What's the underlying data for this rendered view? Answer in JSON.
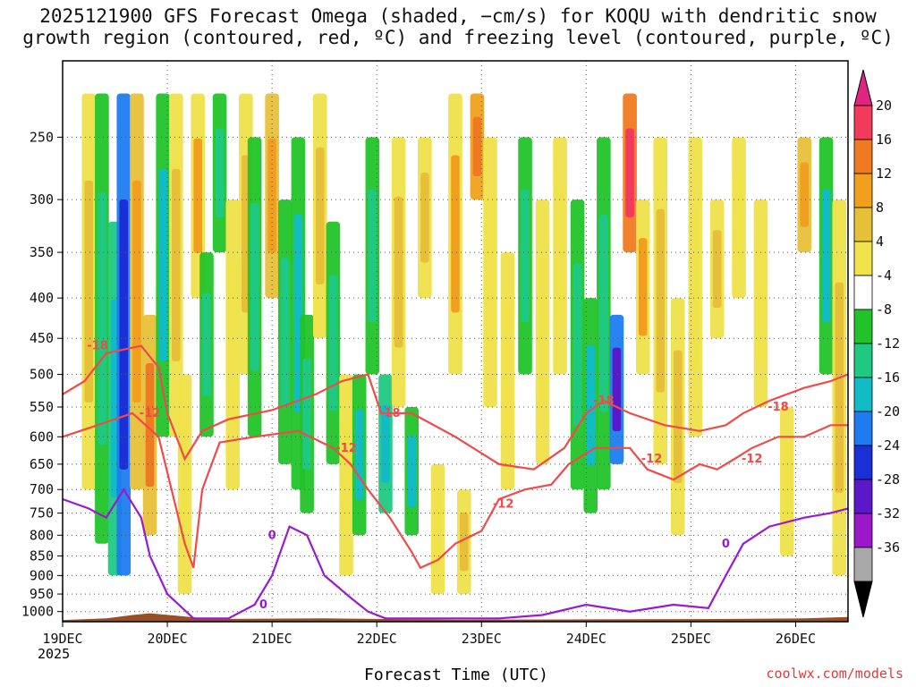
{
  "title": {
    "line1": "2025121900 GFS Forecast Omega (shaded, −cm/s) for KOQU with dendritic snow",
    "line2": "growth region (contoured, red, ºC) and freezing level (contoured, purple, ºC)"
  },
  "xlabel": "Forecast Time (UTC)",
  "year": "2025",
  "credit": "coolwx.com/models",
  "chart_data": {
    "type": "heatmap",
    "title": "2025121900 GFS Forecast Omega (shaded, −cm/s) for KOQU with dendritic snow growth region (contoured, red, ºC) and freezing level (contoured, purple, ºC)",
    "xlabel": "Forecast Time (UTC)",
    "ylabel": "",
    "x_ticks": [
      "19DEC",
      "20DEC",
      "21DEC",
      "22DEC",
      "23DEC",
      "24DEC",
      "25DEC",
      "26DEC"
    ],
    "x_range_hours": [
      0,
      180
    ],
    "y_ticks": [
      250,
      300,
      350,
      400,
      450,
      500,
      550,
      600,
      650,
      700,
      750,
      800,
      850,
      900,
      950,
      1000
    ],
    "y_range": [
      200,
      1030
    ],
    "y_scale": "log-pressure (inverted)",
    "grid": true,
    "colorbar": {
      "labels": [
        "20",
        "16",
        "12",
        "8",
        "4",
        "-4",
        "-8",
        "-12",
        "-16",
        "-20",
        "-24",
        "-28",
        "-32",
        "-36"
      ],
      "colors": [
        "#f23a5a",
        "#f07a22",
        "#f0a01e",
        "#e7c03a",
        "#efe24a",
        "#ffffff",
        "#22c32a",
        "#1fc982",
        "#12bcc4",
        "#1e7cf0",
        "#1a2fd6",
        "#5a18c8",
        "#9a18c8",
        "#a8a8a8"
      ]
    },
    "omega_cells": [
      {
        "t": 6,
        "p0": 220,
        "p1": 700,
        "v": 10
      },
      {
        "t": 9,
        "p0": 220,
        "p1": 820,
        "v": -10
      },
      {
        "t": 12,
        "p0": 320,
        "p1": 900,
        "v": -14
      },
      {
        "t": 14,
        "p0": 220,
        "p1": 900,
        "v": -22
      },
      {
        "t": 17,
        "p0": 220,
        "p1": 700,
        "v": 14
      },
      {
        "t": 20,
        "p0": 420,
        "p1": 800,
        "v": 16
      },
      {
        "t": 23,
        "p0": 220,
        "p1": 600,
        "v": -12
      },
      {
        "t": 26,
        "p0": 220,
        "p1": 600,
        "v": 10
      },
      {
        "t": 28,
        "p0": 500,
        "p1": 950,
        "v": 6
      },
      {
        "t": 31,
        "p0": 220,
        "p1": 400,
        "v": 12
      },
      {
        "t": 33,
        "p0": 350,
        "p1": 600,
        "v": -10
      },
      {
        "t": 36,
        "p0": 220,
        "p1": 350,
        "v": -8
      },
      {
        "t": 39,
        "p0": 300,
        "p1": 700,
        "v": 6
      },
      {
        "t": 42,
        "p0": 220,
        "p1": 500,
        "v": 10
      },
      {
        "t": 44,
        "p0": 250,
        "p1": 600,
        "v": -9
      },
      {
        "t": 48,
        "p0": 220,
        "p1": 400,
        "v": 14
      },
      {
        "t": 51,
        "p0": 300,
        "p1": 650,
        "v": -10
      },
      {
        "t": 54,
        "p0": 250,
        "p1": 700,
        "v": -13
      },
      {
        "t": 56,
        "p0": 420,
        "p1": 750,
        "v": -8
      },
      {
        "t": 59,
        "p0": 220,
        "p1": 450,
        "v": 10
      },
      {
        "t": 62,
        "p0": 320,
        "p1": 650,
        "v": -9
      },
      {
        "t": 65,
        "p0": 500,
        "p1": 900,
        "v": 6
      },
      {
        "t": 68,
        "p0": 500,
        "p1": 800,
        "v": -12
      },
      {
        "t": 71,
        "p0": 250,
        "p1": 500,
        "v": -10
      },
      {
        "t": 74,
        "p0": 500,
        "p1": 750,
        "v": -14
      },
      {
        "t": 77,
        "p0": 250,
        "p1": 550,
        "v": 8
      },
      {
        "t": 80,
        "p0": 550,
        "p1": 800,
        "v": -12
      },
      {
        "t": 83,
        "p0": 250,
        "p1": 400,
        "v": 10
      },
      {
        "t": 86,
        "p0": 650,
        "p1": 950,
        "v": 6
      },
      {
        "t": 90,
        "p0": 220,
        "p1": 500,
        "v": 12
      },
      {
        "t": 92,
        "p0": 700,
        "p1": 950,
        "v": 8
      },
      {
        "t": 95,
        "p0": 220,
        "p1": 300,
        "v": 18
      },
      {
        "t": 98,
        "p0": 250,
        "p1": 550,
        "v": 6
      },
      {
        "t": 102,
        "p0": 350,
        "p1": 700,
        "v": 6
      },
      {
        "t": 106,
        "p0": 250,
        "p1": 500,
        "v": -8
      },
      {
        "t": 110,
        "p0": 300,
        "p1": 650,
        "v": 6
      },
      {
        "t": 114,
        "p0": 250,
        "p1": 500,
        "v": 6
      },
      {
        "t": 118,
        "p0": 300,
        "p1": 700,
        "v": -10
      },
      {
        "t": 121,
        "p0": 400,
        "p1": 750,
        "v": -12
      },
      {
        "t": 124,
        "p0": 250,
        "p1": 700,
        "v": -8
      },
      {
        "t": 127,
        "p0": 420,
        "p1": 650,
        "v": -24
      },
      {
        "t": 130,
        "p0": 220,
        "p1": 350,
        "v": 22
      },
      {
        "t": 133,
        "p0": 300,
        "p1": 500,
        "v": 12
      },
      {
        "t": 137,
        "p0": 250,
        "p1": 650,
        "v": 10
      },
      {
        "t": 141,
        "p0": 400,
        "p1": 800,
        "v": 8
      },
      {
        "t": 145,
        "p0": 250,
        "p1": 600,
        "v": 6
      },
      {
        "t": 150,
        "p0": 300,
        "p1": 450,
        "v": 10
      },
      {
        "t": 155,
        "p0": 250,
        "p1": 400,
        "v": 6
      },
      {
        "t": 160,
        "p0": 300,
        "p1": 550,
        "v": 6
      },
      {
        "t": 166,
        "p0": 550,
        "p1": 850,
        "v": 6
      },
      {
        "t": 170,
        "p0": 250,
        "p1": 350,
        "v": 14
      },
      {
        "t": 175,
        "p0": 250,
        "p1": 500,
        "v": -12
      },
      {
        "t": 178,
        "p0": 300,
        "p1": 900,
        "v": 10
      }
    ],
    "contours": [
      {
        "name": "-18",
        "color": "#f04a4a",
        "labels": [
          {
            "t": 8,
            "p": 460,
            "text": "-18"
          },
          {
            "t": 75,
            "p": 560,
            "text": "-18"
          },
          {
            "t": 124,
            "p": 540,
            "text": "-18"
          },
          {
            "t": 164,
            "p": 550,
            "text": "-18"
          }
        ],
        "points": [
          [
            0,
            530
          ],
          [
            5,
            510
          ],
          [
            10,
            470
          ],
          [
            18,
            460
          ],
          [
            22,
            490
          ],
          [
            24,
            560
          ],
          [
            28,
            640
          ],
          [
            32,
            590
          ],
          [
            38,
            570
          ],
          [
            48,
            555
          ],
          [
            58,
            530
          ],
          [
            64,
            510
          ],
          [
            70,
            500
          ],
          [
            73,
            560
          ],
          [
            80,
            560
          ],
          [
            90,
            600
          ],
          [
            100,
            650
          ],
          [
            108,
            660
          ],
          [
            115,
            620
          ],
          [
            120,
            560
          ],
          [
            124,
            540
          ],
          [
            130,
            560
          ],
          [
            138,
            580
          ],
          [
            146,
            590
          ],
          [
            152,
            580
          ],
          [
            156,
            560
          ],
          [
            162,
            540
          ],
          [
            170,
            520
          ],
          [
            176,
            510
          ],
          [
            180,
            500
          ]
        ]
      },
      {
        "name": "-12",
        "color": "#f04a4a",
        "labels": [
          {
            "t": 20,
            "p": 560,
            "text": "-12"
          },
          {
            "t": 65,
            "p": 620,
            "text": "-12"
          },
          {
            "t": 101,
            "p": 730,
            "text": "-12"
          },
          {
            "t": 135,
            "p": 640,
            "text": "-12"
          },
          {
            "t": 158,
            "p": 640,
            "text": "-12"
          }
        ],
        "points": [
          [
            0,
            600
          ],
          [
            8,
            580
          ],
          [
            16,
            560
          ],
          [
            22,
            600
          ],
          [
            28,
            820
          ],
          [
            30,
            880
          ],
          [
            32,
            700
          ],
          [
            36,
            610
          ],
          [
            44,
            600
          ],
          [
            54,
            590
          ],
          [
            62,
            620
          ],
          [
            66,
            650
          ],
          [
            70,
            700
          ],
          [
            75,
            760
          ],
          [
            80,
            840
          ],
          [
            82,
            880
          ],
          [
            86,
            860
          ],
          [
            90,
            820
          ],
          [
            96,
            790
          ],
          [
            100,
            720
          ],
          [
            106,
            700
          ],
          [
            112,
            690
          ],
          [
            116,
            650
          ],
          [
            122,
            620
          ],
          [
            130,
            620
          ],
          [
            134,
            660
          ],
          [
            140,
            680
          ],
          [
            146,
            650
          ],
          [
            150,
            660
          ],
          [
            154,
            640
          ],
          [
            158,
            620
          ],
          [
            164,
            600
          ],
          [
            170,
            600
          ],
          [
            176,
            580
          ],
          [
            180,
            580
          ]
        ]
      },
      {
        "name": "0",
        "color": "#9a1ad0",
        "labels": [
          {
            "t": 48,
            "p": 800,
            "text": "0"
          },
          {
            "t": 46,
            "p": 980,
            "text": "0"
          },
          {
            "t": 152,
            "p": 820,
            "text": "0"
          }
        ],
        "points": [
          [
            0,
            720
          ],
          [
            6,
            740
          ],
          [
            10,
            760
          ],
          [
            14,
            700
          ],
          [
            18,
            760
          ],
          [
            20,
            850
          ],
          [
            24,
            950
          ],
          [
            30,
            1020
          ],
          [
            38,
            1020
          ],
          [
            44,
            980
          ],
          [
            48,
            900
          ],
          [
            52,
            780
          ],
          [
            56,
            800
          ],
          [
            60,
            900
          ],
          [
            66,
            960
          ],
          [
            70,
            1000
          ],
          [
            74,
            1020
          ],
          [
            100,
            1020
          ],
          [
            110,
            1010
          ],
          [
            120,
            980
          ],
          [
            130,
            1000
          ],
          [
            140,
            980
          ],
          [
            148,
            990
          ],
          [
            152,
            900
          ],
          [
            156,
            820
          ],
          [
            162,
            780
          ],
          [
            170,
            760
          ],
          [
            176,
            750
          ],
          [
            180,
            740
          ]
        ]
      }
    ]
  }
}
